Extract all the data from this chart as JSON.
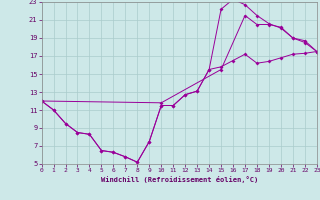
{
  "xlabel": "Windchill (Refroidissement éolien,°C)",
  "xlim": [
    0,
    23
  ],
  "ylim": [
    5,
    23
  ],
  "xticks": [
    0,
    1,
    2,
    3,
    4,
    5,
    6,
    7,
    8,
    9,
    10,
    11,
    12,
    13,
    14,
    15,
    16,
    17,
    18,
    19,
    20,
    21,
    22,
    23
  ],
  "yticks": [
    5,
    7,
    9,
    11,
    13,
    15,
    17,
    19,
    21,
    23
  ],
  "bg_color": "#cde8e8",
  "line_color": "#990099",
  "grid_color": "#aacccc",
  "line1_x": [
    0,
    1,
    2,
    3,
    4,
    5,
    6,
    7,
    8,
    9,
    10,
    11,
    12,
    13,
    14,
    15,
    16,
    17,
    18,
    19,
    20,
    21,
    22,
    23
  ],
  "line1_y": [
    12,
    11,
    9.5,
    8.5,
    8.3,
    6.5,
    6.3,
    5.8,
    5.2,
    7.5,
    11.5,
    11.5,
    12.7,
    13.1,
    15.5,
    22.2,
    23.3,
    22.7,
    21.5,
    20.6,
    20.1,
    19.0,
    18.7,
    17.5
  ],
  "line2_x": [
    0,
    1,
    2,
    3,
    4,
    5,
    6,
    7,
    8,
    9,
    10,
    11,
    12,
    13,
    14,
    15,
    16,
    17,
    18,
    19,
    20,
    21,
    22,
    23
  ],
  "line2_y": [
    12,
    11,
    9.5,
    8.5,
    8.3,
    6.5,
    6.3,
    5.8,
    5.2,
    7.5,
    11.5,
    11.5,
    12.7,
    13.1,
    15.5,
    15.8,
    16.5,
    17.2,
    16.2,
    16.4,
    16.8,
    17.2,
    17.3,
    17.5
  ],
  "line3_x": [
    0,
    10,
    15,
    17,
    18,
    19,
    20,
    21,
    22,
    23
  ],
  "line3_y": [
    12,
    11.8,
    15.5,
    21.5,
    20.5,
    20.5,
    20.2,
    19.0,
    18.5,
    17.5
  ]
}
